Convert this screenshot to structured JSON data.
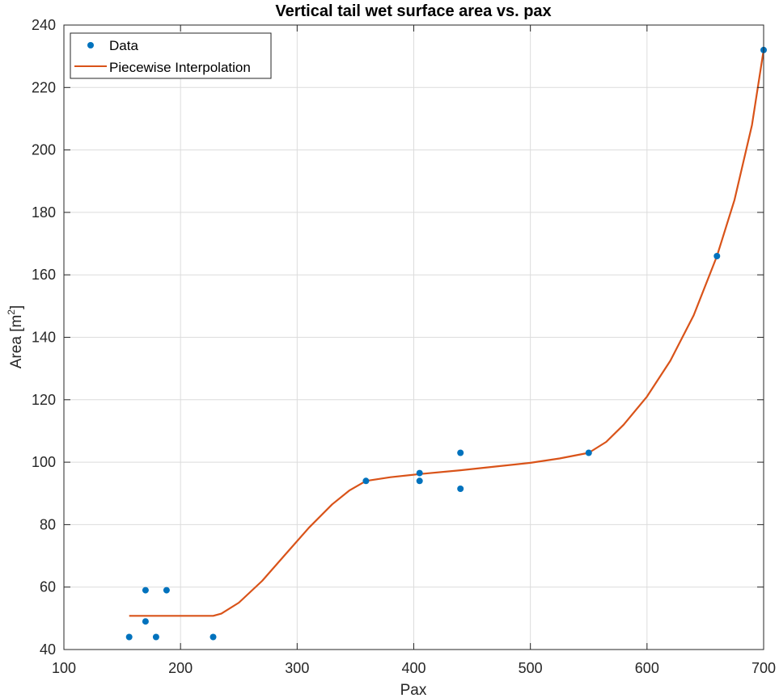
{
  "chart_data": {
    "type": "line",
    "title": "Vertical tail wet surface area vs. pax",
    "xlabel": "Pax",
    "ylabel_main": "Area [m",
    "ylabel_sup": "2",
    "ylabel_end": "]",
    "xlim": [
      100,
      700
    ],
    "ylim": [
      40,
      240
    ],
    "xticks": [
      100,
      200,
      300,
      400,
      500,
      600,
      700
    ],
    "yticks": [
      40,
      60,
      80,
      100,
      120,
      140,
      160,
      180,
      200,
      220,
      240
    ],
    "grid": true,
    "legend_position": "top-left",
    "series": [
      {
        "name": "Data",
        "style": "markers",
        "color": "#0072BD",
        "points": [
          [
            156,
            44
          ],
          [
            170,
            59
          ],
          [
            170,
            49
          ],
          [
            179,
            44
          ],
          [
            188,
            59
          ],
          [
            228,
            44
          ],
          [
            359,
            94
          ],
          [
            405,
            96.5
          ],
          [
            405,
            94
          ],
          [
            440,
            103
          ],
          [
            440,
            91.5
          ],
          [
            550,
            103
          ],
          [
            660,
            166
          ],
          [
            700,
            232
          ]
        ]
      },
      {
        "name": "Piecewise Interpolation",
        "style": "line",
        "color": "#D95319",
        "points": [
          [
            156,
            50.8
          ],
          [
            200,
            50.8
          ],
          [
            228,
            50.8
          ],
          [
            235,
            51.5
          ],
          [
            250,
            55
          ],
          [
            270,
            62
          ],
          [
            290,
            70.5
          ],
          [
            310,
            79
          ],
          [
            330,
            86.5
          ],
          [
            345,
            91
          ],
          [
            359,
            94
          ],
          [
            380,
            95.2
          ],
          [
            405,
            96.2
          ],
          [
            440,
            97.4
          ],
          [
            470,
            98.6
          ],
          [
            500,
            99.8
          ],
          [
            525,
            101.2
          ],
          [
            550,
            103
          ],
          [
            565,
            106.5
          ],
          [
            580,
            112
          ],
          [
            600,
            121
          ],
          [
            620,
            132.5
          ],
          [
            640,
            147
          ],
          [
            660,
            166
          ],
          [
            675,
            184
          ],
          [
            690,
            208
          ],
          [
            700,
            232
          ]
        ]
      }
    ]
  }
}
